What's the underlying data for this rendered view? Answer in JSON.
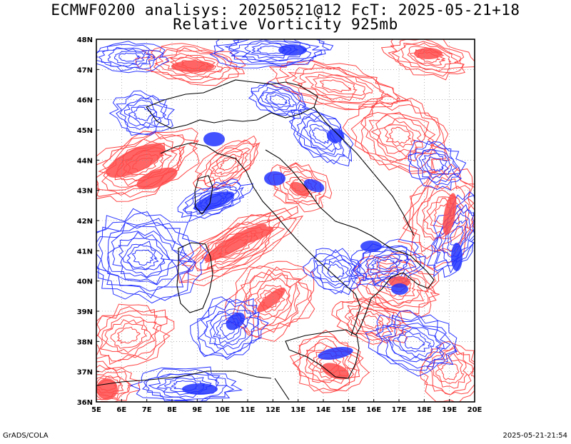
{
  "title_line1": "ECMWF0200 analisys: 20250521@12 FcT: 2025-05-21+18",
  "title_line2": "Relative Vorticity 925mb",
  "map": {
    "lon_range": [
      5,
      20
    ],
    "lat_range": [
      36,
      48
    ],
    "x_ticks": [
      "5E",
      "6E",
      "7E",
      "8E",
      "9E",
      "10E",
      "11E",
      "12E",
      "13E",
      "14E",
      "15E",
      "16E",
      "17E",
      "18E",
      "19E",
      "20E"
    ],
    "y_ticks": [
      "36N",
      "37N",
      "38N",
      "39N",
      "40N",
      "41N",
      "42N",
      "43N",
      "44N",
      "45N",
      "46N",
      "47N",
      "48N"
    ],
    "contour_colors": {
      "positive": "#ff3b3b",
      "negative": "#1e2bff"
    },
    "coastline_color": "#000000",
    "background": "#ffffff"
  },
  "footer": {
    "credit": "GrADS/COLA",
    "timestamp": "2025-05-21-21:54"
  }
}
